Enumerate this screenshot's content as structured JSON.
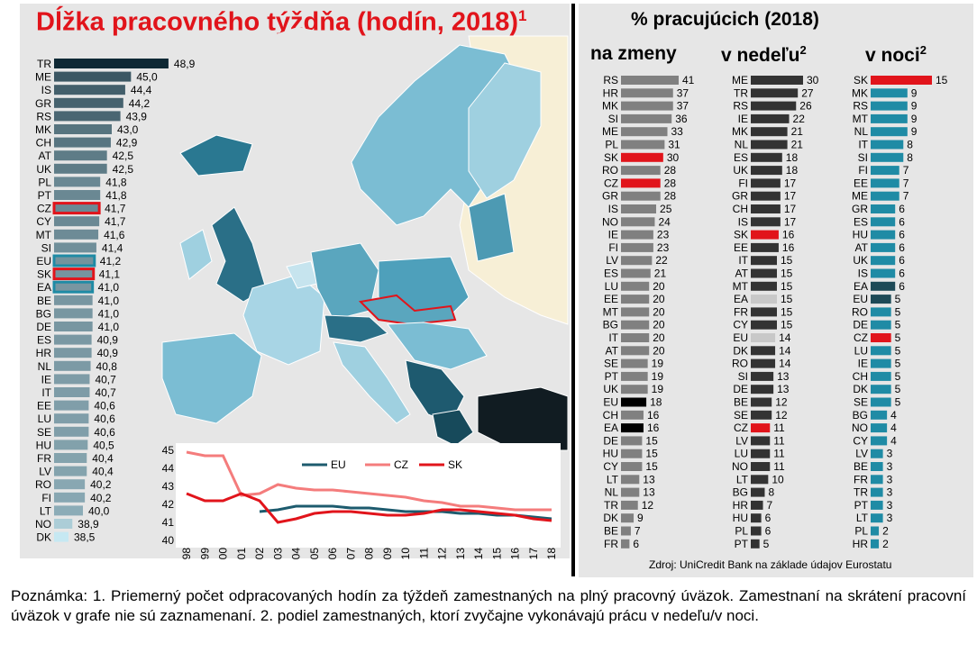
{
  "left_title": "Dĺžka pracovného týždňa (hodín, 2018)",
  "left_title_sup": "1",
  "right_title": "% pracujúcich (2018)",
  "col1_title": "na zmeny",
  "col2_title": "v nedeľu",
  "col2_sup": "2",
  "col3_title": "v noci",
  "col3_sup": "2",
  "source": "Zdroj: UniCredit Bank na základe údajov Eurostatu",
  "note": "Poznámka: 1. Priemerný počet odpracovaných hodín za týždeň zamestnaných na plný pracovný úväzok. Zamestnaní na skrátení pracovní úväzok v grafe nie sú zaznamenaní. 2. podiel zamestnaných, ktorí zvyčajne vykonávajú prácu v nedeľu/v noci.",
  "colors": {
    "red": "#e1141b",
    "grey": "#808080",
    "dark": "#333333",
    "teal": "#1f8ba5",
    "eu_line": "#1d5b6e",
    "cz_line": "#f47c7c",
    "sk_line": "#e1141b"
  },
  "chart_data": [
    {
      "type": "bar",
      "orientation": "horizontal",
      "title": "Dĺžka pracovného týždňa (hodín, 2018)",
      "categories": [
        "TR",
        "ME",
        "IS",
        "GR",
        "RS",
        "MK",
        "CH",
        "AT",
        "UK",
        "PL",
        "PT",
        "CZ",
        "CY",
        "MT",
        "SI",
        "EU",
        "SK",
        "EA",
        "BE",
        "BG",
        "DE",
        "ES",
        "HR",
        "NL",
        "IE",
        "IT",
        "EE",
        "LU",
        "SE",
        "HU",
        "FR",
        "LV",
        "RO",
        "FI",
        "LT",
        "NO",
        "DK"
      ],
      "labels": [
        "48,9",
        "45,0",
        "44,4",
        "44,2",
        "43,9",
        "43,0",
        "42,9",
        "42,5",
        "42,5",
        "41,8",
        "41,8",
        "41,7",
        "41,7",
        "41,6",
        "41,4",
        "41,2",
        "41,1",
        "41,0",
        "41,0",
        "41,0",
        "41,0",
        "40,9",
        "40,9",
        "40,8",
        "40,7",
        "40,7",
        "40,6",
        "40,6",
        "40,6",
        "40,5",
        "40,4",
        "40,4",
        "40,2",
        "40,2",
        "40,0",
        "38,9",
        "38,5"
      ],
      "values": [
        48.9,
        45.0,
        44.4,
        44.2,
        43.9,
        43.0,
        42.9,
        42.5,
        42.5,
        41.8,
        41.8,
        41.7,
        41.7,
        41.6,
        41.4,
        41.2,
        41.1,
        41.0,
        41.0,
        41.0,
        41.0,
        40.9,
        40.9,
        40.8,
        40.7,
        40.7,
        40.6,
        40.6,
        40.6,
        40.5,
        40.4,
        40.4,
        40.2,
        40.2,
        40.0,
        38.9,
        38.5
      ],
      "highlight_outline": [
        "CZ",
        "SK"
      ],
      "highlight_aggregate": [
        "EU",
        "EA"
      ]
    },
    {
      "type": "line",
      "x": [
        "98",
        "99",
        "00",
        "01",
        "02",
        "03",
        "04",
        "05",
        "06",
        "07",
        "08",
        "09",
        "10",
        "11",
        "12",
        "13",
        "14",
        "15",
        "16",
        "17",
        "18"
      ],
      "ylim": [
        40,
        45
      ],
      "yticks": [
        "40",
        "41",
        "42",
        "43",
        "44",
        "45"
      ],
      "legend": "top",
      "series": [
        {
          "name": "EU",
          "values": [
            null,
            null,
            null,
            null,
            41.6,
            41.7,
            41.9,
            41.9,
            41.9,
            41.8,
            41.8,
            41.7,
            41.6,
            41.6,
            41.6,
            41.5,
            41.5,
            41.4,
            41.4,
            41.3,
            41.2
          ]
        },
        {
          "name": "CZ",
          "values": [
            44.9,
            44.7,
            44.7,
            42.5,
            42.6,
            43.1,
            42.9,
            42.8,
            42.8,
            42.7,
            42.6,
            42.5,
            42.4,
            42.2,
            42.1,
            41.9,
            41.9,
            41.8,
            41.7,
            41.7,
            41.7
          ]
        },
        {
          "name": "SK",
          "values": [
            42.6,
            42.2,
            42.2,
            42.6,
            42.2,
            41.0,
            41.2,
            41.5,
            41.6,
            41.6,
            41.5,
            41.4,
            41.4,
            41.5,
            41.7,
            41.7,
            41.6,
            41.5,
            41.4,
            41.2,
            41.1
          ]
        }
      ]
    },
    {
      "type": "bar",
      "orientation": "horizontal",
      "title": "na zmeny",
      "categories": [
        "RS",
        "HR",
        "MK",
        "SI",
        "ME",
        "PL",
        "SK",
        "RO",
        "CZ",
        "GR",
        "IS",
        "NO",
        "IE",
        "FI",
        "LV",
        "ES",
        "LU",
        "EE",
        "MT",
        "BG",
        "IT",
        "AT",
        "SE",
        "PT",
        "UK",
        "EU",
        "CH",
        "EA",
        "DE",
        "HU",
        "CY",
        "LT",
        "NL",
        "TR",
        "DK",
        "BE",
        "FR"
      ],
      "values": [
        41,
        37,
        37,
        36,
        33,
        31,
        30,
        28,
        28,
        28,
        25,
        24,
        23,
        23,
        22,
        21,
        20,
        20,
        20,
        20,
        20,
        20,
        19,
        19,
        19,
        18,
        16,
        16,
        15,
        15,
        15,
        13,
        13,
        12,
        9,
        7,
        6
      ],
      "highlight_red": [
        "SK",
        "CZ"
      ],
      "highlight_black": [
        "EU",
        "EA"
      ]
    },
    {
      "type": "bar",
      "orientation": "horizontal",
      "title": "v nedeľu",
      "categories": [
        "ME",
        "TR",
        "RS",
        "IE",
        "MK",
        "NL",
        "ES",
        "UK",
        "FI",
        "GR",
        "CH",
        "IS",
        "SK",
        "EE",
        "IT",
        "AT",
        "MT",
        "EA",
        "FR",
        "CY",
        "EU",
        "DK",
        "RO",
        "SI",
        "DE",
        "BE",
        "SE",
        "CZ",
        "LV",
        "LU",
        "NO",
        "LT",
        "BG",
        "HR",
        "HU",
        "PL",
        "PT"
      ],
      "values": [
        30,
        27,
        26,
        22,
        21,
        21,
        18,
        18,
        17,
        17,
        17,
        17,
        16,
        16,
        15,
        15,
        15,
        15,
        15,
        15,
        14,
        14,
        14,
        13,
        13,
        12,
        12,
        11,
        11,
        11,
        11,
        10,
        8,
        7,
        6,
        6,
        5
      ],
      "highlight_red": [
        "SK",
        "CZ"
      ],
      "highlight_light": [
        "EA",
        "EU"
      ]
    },
    {
      "type": "bar",
      "orientation": "horizontal",
      "title": "v noci",
      "categories": [
        "SK",
        "MK",
        "RS",
        "MT",
        "NL",
        "IT",
        "SI",
        "FI",
        "EE",
        "ME",
        "GR",
        "ES",
        "HU",
        "AT",
        "UK",
        "IS",
        "EA",
        "EU",
        "RO",
        "DE",
        "CZ",
        "LU",
        "IE",
        "CH",
        "DK",
        "SE",
        "BG",
        "NO",
        "CY",
        "LV",
        "BE",
        "FR",
        "TR",
        "PT",
        "LT",
        "PL",
        "HR"
      ],
      "values": [
        15,
        9,
        9,
        9,
        9,
        8,
        8,
        7,
        7,
        7,
        6,
        6,
        6,
        6,
        6,
        6,
        6,
        5,
        5,
        5,
        5,
        5,
        5,
        5,
        5,
        5,
        4,
        4,
        4,
        3,
        3,
        3,
        3,
        3,
        3,
        2,
        2
      ],
      "highlight_red": [
        "SK",
        "CZ"
      ],
      "highlight_dark": [
        "EA",
        "EU"
      ]
    }
  ]
}
